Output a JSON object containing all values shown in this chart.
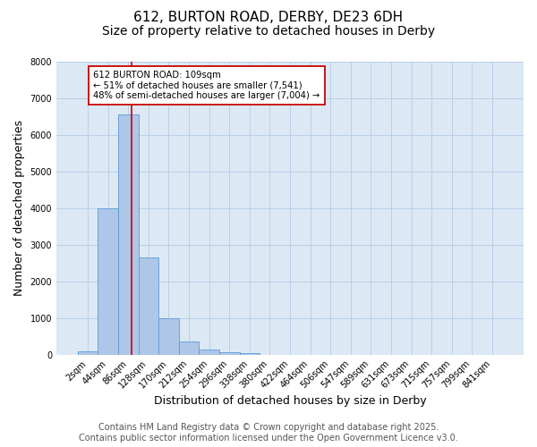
{
  "title": "612, BURTON ROAD, DERBY, DE23 6DH",
  "subtitle": "Size of property relative to detached houses in Derby",
  "xlabel": "Distribution of detached houses by size in Derby",
  "ylabel": "Number of detached properties",
  "bar_values": [
    80,
    4000,
    6550,
    2650,
    1000,
    350,
    130,
    60,
    50,
    0,
    0,
    0,
    0,
    0,
    0,
    0,
    0,
    0,
    0,
    0,
    0
  ],
  "bar_labels": [
    "2sqm",
    "44sqm",
    "86sqm",
    "128sqm",
    "170sqm",
    "212sqm",
    "254sqm",
    "296sqm",
    "338sqm",
    "380sqm",
    "422sqm",
    "464sqm",
    "506sqm",
    "547sqm",
    "589sqm",
    "631sqm",
    "673sqm",
    "715sqm",
    "757sqm",
    "799sqm",
    "841sqm"
  ],
  "bar_color": "#aec6e8",
  "bar_edge_color": "#5b9bd5",
  "vline_x": 2.18,
  "vline_color": "#cc0000",
  "annotation_text": "612 BURTON ROAD: 109sqm\n← 51% of detached houses are smaller (7,541)\n48% of semi-detached houses are larger (7,004) →",
  "annotation_box_color": "#ffffff",
  "annotation_box_edge": "#cc0000",
  "ylim": [
    0,
    8000
  ],
  "yticks": [
    0,
    1000,
    2000,
    3000,
    4000,
    5000,
    6000,
    7000,
    8000
  ],
  "background_color": "#ffffff",
  "axes_bg_color": "#dce9f5",
  "grid_color": "#b8cfe8",
  "footer_line1": "Contains HM Land Registry data © Crown copyright and database right 2025.",
  "footer_line2": "Contains public sector information licensed under the Open Government Licence v3.0.",
  "title_fontsize": 11,
  "subtitle_fontsize": 10,
  "axis_label_fontsize": 9,
  "tick_fontsize": 7,
  "footer_fontsize": 7
}
